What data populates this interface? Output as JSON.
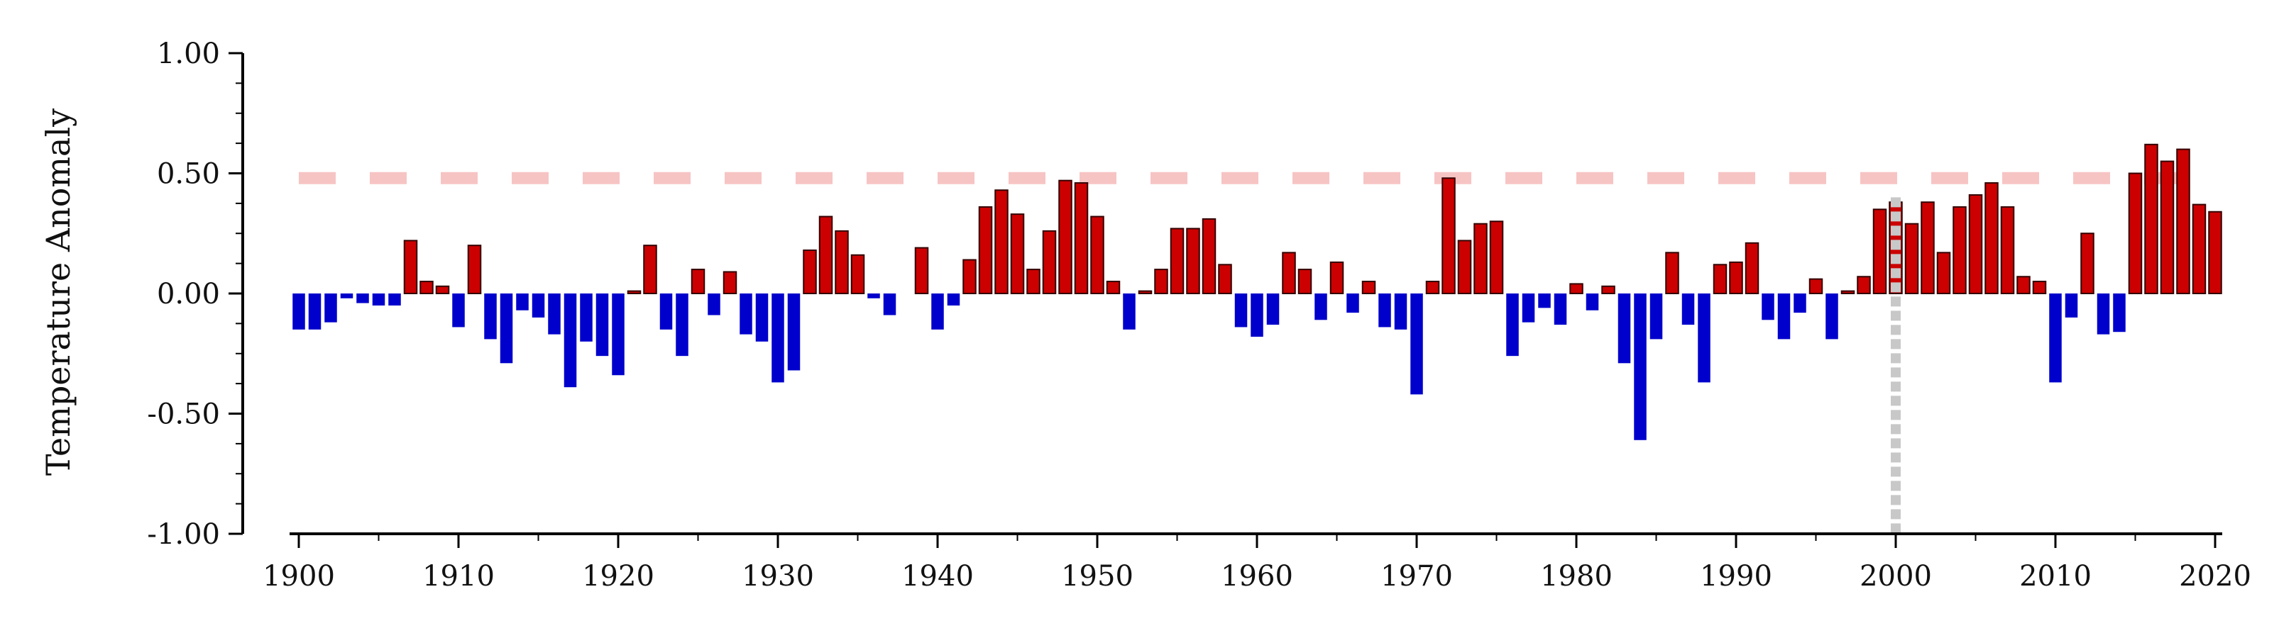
{
  "chart_data": {
    "type": "bar",
    "title": "",
    "xlabel": "",
    "ylabel": "Temperature Anomaly",
    "xlim": [
      1900,
      2020
    ],
    "ylim": [
      -1.0,
      1.0
    ],
    "x_ticks": [
      1900,
      1910,
      1920,
      1930,
      1940,
      1950,
      1960,
      1970,
      1980,
      1990,
      2000,
      2010,
      2020
    ],
    "y_ticks": [
      -1.0,
      -0.5,
      0.0,
      0.5,
      1.0
    ],
    "y_tick_labels": [
      "-1.00",
      "-0.50",
      "0.00",
      "0.50",
      "1.00"
    ],
    "reference_line": {
      "y": 0.48,
      "color": "#f7c4c4",
      "style": "dashed"
    },
    "marker_line": {
      "x": 2000,
      "color": "#c8c8c8",
      "style": "dotted"
    },
    "colors": {
      "positive": "#cc0000",
      "negative": "#0000cc"
    },
    "grid": false,
    "legend": false,
    "years": [
      1900,
      1901,
      1902,
      1903,
      1904,
      1905,
      1906,
      1907,
      1908,
      1909,
      1910,
      1911,
      1912,
      1913,
      1914,
      1915,
      1916,
      1917,
      1918,
      1919,
      1920,
      1921,
      1922,
      1923,
      1924,
      1925,
      1926,
      1927,
      1928,
      1929,
      1930,
      1931,
      1932,
      1933,
      1934,
      1935,
      1936,
      1937,
      1938,
      1939,
      1940,
      1941,
      1942,
      1943,
      1944,
      1945,
      1946,
      1947,
      1948,
      1949,
      1950,
      1951,
      1952,
      1953,
      1954,
      1955,
      1956,
      1957,
      1958,
      1959,
      1960,
      1961,
      1962,
      1963,
      1964,
      1965,
      1966,
      1967,
      1968,
      1969,
      1970,
      1971,
      1972,
      1973,
      1974,
      1975,
      1976,
      1977,
      1978,
      1979,
      1980,
      1981,
      1982,
      1983,
      1984,
      1985,
      1986,
      1987,
      1988,
      1989,
      1990,
      1991,
      1992,
      1993,
      1994,
      1995,
      1996,
      1997,
      1998,
      1999,
      2000,
      2001,
      2002,
      2003,
      2004,
      2005,
      2006,
      2007,
      2008,
      2009,
      2010,
      2011,
      2012,
      2013,
      2014,
      2015,
      2016,
      2017,
      2018,
      2019,
      2020
    ],
    "values": [
      -0.15,
      -0.15,
      -0.12,
      -0.02,
      -0.04,
      -0.05,
      -0.05,
      0.22,
      0.05,
      0.03,
      -0.14,
      0.2,
      -0.19,
      -0.29,
      -0.07,
      -0.1,
      -0.17,
      -0.39,
      -0.2,
      -0.26,
      -0.34,
      0.01,
      0.2,
      -0.15,
      -0.26,
      0.1,
      -0.09,
      0.09,
      -0.17,
      -0.2,
      -0.37,
      -0.32,
      0.18,
      0.32,
      0.26,
      0.16,
      -0.02,
      -0.09,
      0.0,
      0.19,
      -0.15,
      -0.05,
      0.14,
      0.36,
      0.43,
      0.33,
      0.1,
      0.26,
      0.47,
      0.46,
      0.32,
      0.05,
      -0.15,
      0.01,
      0.1,
      0.27,
      0.27,
      0.31,
      0.12,
      -0.14,
      -0.18,
      -0.13,
      0.17,
      0.1,
      -0.11,
      0.13,
      -0.08,
      0.05,
      -0.14,
      -0.15,
      -0.42,
      0.05,
      0.48,
      0.22,
      0.29,
      0.3,
      -0.26,
      -0.12,
      -0.06,
      -0.13,
      0.04,
      -0.07,
      0.03,
      -0.29,
      -0.61,
      -0.19,
      0.17,
      -0.13,
      -0.37,
      0.12,
      0.13,
      0.21,
      -0.11,
      -0.19,
      -0.08,
      0.06,
      -0.19,
      0.01,
      0.07,
      0.35,
      0.38,
      0.29,
      0.38,
      0.17,
      0.36,
      0.41,
      0.46,
      0.36,
      0.07,
      0.05,
      -0.37,
      -0.1,
      0.25,
      -0.17,
      -0.16,
      0.5,
      0.62,
      0.55,
      0.6,
      0.37,
      0.34
    ]
  }
}
